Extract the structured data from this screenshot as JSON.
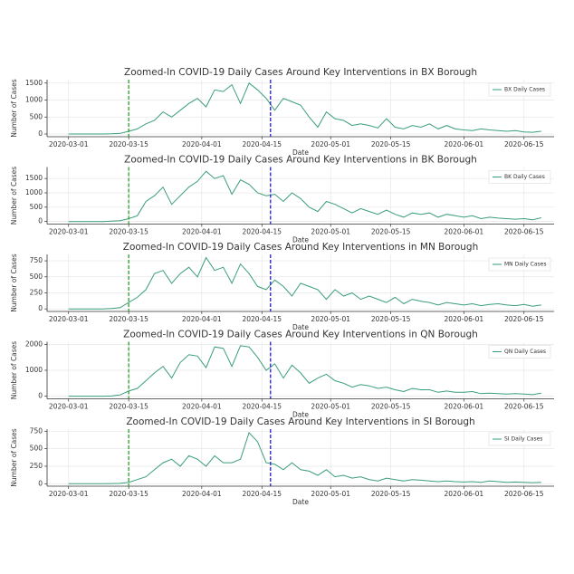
{
  "chart_data": [
    {
      "type": "line",
      "title": "Zoomed-In COVID-19 Daily Cases Around Key Interventions in BX Borough",
      "x_label": "Date",
      "y_label": "Number of Cases",
      "x": [
        "2020-03-01",
        "2020-03-03",
        "2020-03-05",
        "2020-03-07",
        "2020-03-09",
        "2020-03-11",
        "2020-03-13",
        "2020-03-15",
        "2020-03-17",
        "2020-03-19",
        "2020-03-21",
        "2020-03-23",
        "2020-03-25",
        "2020-03-27",
        "2020-03-29",
        "2020-03-31",
        "2020-04-02",
        "2020-04-04",
        "2020-04-06",
        "2020-04-08",
        "2020-04-10",
        "2020-04-12",
        "2020-04-14",
        "2020-04-16",
        "2020-04-18",
        "2020-04-20",
        "2020-04-22",
        "2020-04-24",
        "2020-04-26",
        "2020-04-28",
        "2020-04-30",
        "2020-05-02",
        "2020-05-04",
        "2020-05-06",
        "2020-05-08",
        "2020-05-10",
        "2020-05-12",
        "2020-05-14",
        "2020-05-16",
        "2020-05-18",
        "2020-05-20",
        "2020-05-22",
        "2020-05-24",
        "2020-05-26",
        "2020-05-28",
        "2020-05-30",
        "2020-06-01",
        "2020-06-03",
        "2020-06-05",
        "2020-06-07",
        "2020-06-09",
        "2020-06-11",
        "2020-06-13",
        "2020-06-15",
        "2020-06-17",
        "2020-06-19"
      ],
      "series": [
        {
          "name": "BX Daily Cases",
          "color": "#3a9e7a",
          "values": [
            0,
            0,
            0,
            0,
            0,
            5,
            20,
            80,
            150,
            300,
            400,
            650,
            500,
            700,
            900,
            1050,
            800,
            1300,
            1250,
            1450,
            900,
            1500,
            1300,
            1050,
            700,
            1050,
            950,
            850,
            500,
            200,
            650,
            450,
            400,
            250,
            300,
            250,
            180,
            450,
            200,
            150,
            250,
            200,
            300,
            150,
            250,
            150,
            120,
            100,
            150,
            120,
            100,
            80,
            100,
            60,
            50,
            80
          ]
        }
      ],
      "xlim": [
        "2020-02-25",
        "2020-06-22"
      ],
      "xticks": [
        "2020-03-01",
        "2020-03-15",
        "2020-04-01",
        "2020-04-15",
        "2020-05-01",
        "2020-05-15",
        "2020-06-01",
        "2020-06-15"
      ],
      "ylim": [
        -80,
        1600
      ],
      "yticks": [
        0,
        500,
        1000,
        1500
      ],
      "grid": true,
      "legend": "upper right",
      "vlines": [
        {
          "x": "2020-03-15",
          "color": "#2ca02c"
        },
        {
          "x": "2020-04-17",
          "color": "#1f1fbf"
        }
      ]
    },
    {
      "type": "line",
      "title": "Zoomed-In COVID-19 Daily Cases Around Key Interventions in BK Borough",
      "x_label": "Date",
      "y_label": "Number of Cases",
      "x": [
        "2020-03-01",
        "2020-03-03",
        "2020-03-05",
        "2020-03-07",
        "2020-03-09",
        "2020-03-11",
        "2020-03-13",
        "2020-03-15",
        "2020-03-17",
        "2020-03-19",
        "2020-03-21",
        "2020-03-23",
        "2020-03-25",
        "2020-03-27",
        "2020-03-29",
        "2020-03-31",
        "2020-04-02",
        "2020-04-04",
        "2020-04-06",
        "2020-04-08",
        "2020-04-10",
        "2020-04-12",
        "2020-04-14",
        "2020-04-16",
        "2020-04-18",
        "2020-04-20",
        "2020-04-22",
        "2020-04-24",
        "2020-04-26",
        "2020-04-28",
        "2020-04-30",
        "2020-05-02",
        "2020-05-04",
        "2020-05-06",
        "2020-05-08",
        "2020-05-10",
        "2020-05-12",
        "2020-05-14",
        "2020-05-16",
        "2020-05-18",
        "2020-05-20",
        "2020-05-22",
        "2020-05-24",
        "2020-05-26",
        "2020-05-28",
        "2020-05-30",
        "2020-06-01",
        "2020-06-03",
        "2020-06-05",
        "2020-06-07",
        "2020-06-09",
        "2020-06-11",
        "2020-06-13",
        "2020-06-15",
        "2020-06-17",
        "2020-06-19"
      ],
      "series": [
        {
          "name": "BK Daily Cases",
          "color": "#3a9e7a",
          "values": [
            0,
            0,
            0,
            0,
            0,
            10,
            30,
            100,
            200,
            700,
            900,
            1200,
            600,
            900,
            1200,
            1400,
            1750,
            1500,
            1600,
            950,
            1450,
            1300,
            1000,
            900,
            950,
            700,
            1000,
            800,
            500,
            350,
            700,
            600,
            450,
            300,
            450,
            350,
            250,
            400,
            250,
            150,
            300,
            250,
            300,
            150,
            250,
            200,
            150,
            200,
            100,
            150,
            120,
            100,
            80,
            100,
            60,
            130
          ]
        }
      ],
      "xlim": [
        "2020-02-25",
        "2020-06-22"
      ],
      "xticks": [
        "2020-03-01",
        "2020-03-15",
        "2020-04-01",
        "2020-04-15",
        "2020-05-01",
        "2020-05-15",
        "2020-06-01",
        "2020-06-15"
      ],
      "ylim": [
        -90,
        1900
      ],
      "yticks": [
        0,
        500,
        1000,
        1500
      ],
      "grid": true,
      "legend": "upper right",
      "vlines": [
        {
          "x": "2020-03-15",
          "color": "#2ca02c"
        },
        {
          "x": "2020-04-17",
          "color": "#1f1fbf"
        }
      ]
    },
    {
      "type": "line",
      "title": "Zoomed-In COVID-19 Daily Cases Around Key Interventions in MN Borough",
      "x_label": "Date",
      "y_label": "Number of Cases",
      "x": [
        "2020-03-01",
        "2020-03-03",
        "2020-03-05",
        "2020-03-07",
        "2020-03-09",
        "2020-03-11",
        "2020-03-13",
        "2020-03-15",
        "2020-03-17",
        "2020-03-19",
        "2020-03-21",
        "2020-03-23",
        "2020-03-25",
        "2020-03-27",
        "2020-03-29",
        "2020-03-31",
        "2020-04-02",
        "2020-04-04",
        "2020-04-06",
        "2020-04-08",
        "2020-04-10",
        "2020-04-12",
        "2020-04-14",
        "2020-04-16",
        "2020-04-18",
        "2020-04-20",
        "2020-04-22",
        "2020-04-24",
        "2020-04-26",
        "2020-04-28",
        "2020-04-30",
        "2020-05-02",
        "2020-05-04",
        "2020-05-06",
        "2020-05-08",
        "2020-05-10",
        "2020-05-12",
        "2020-05-14",
        "2020-05-16",
        "2020-05-18",
        "2020-05-20",
        "2020-05-22",
        "2020-05-24",
        "2020-05-26",
        "2020-05-28",
        "2020-05-30",
        "2020-06-01",
        "2020-06-03",
        "2020-06-05",
        "2020-06-07",
        "2020-06-09",
        "2020-06-11",
        "2020-06-13",
        "2020-06-15",
        "2020-06-17",
        "2020-06-19"
      ],
      "series": [
        {
          "name": "MN Daily Cases",
          "color": "#3a9e7a",
          "values": [
            0,
            0,
            0,
            0,
            0,
            5,
            20,
            100,
            180,
            300,
            550,
            600,
            400,
            550,
            650,
            500,
            800,
            600,
            650,
            400,
            700,
            550,
            350,
            300,
            450,
            350,
            200,
            400,
            350,
            300,
            150,
            300,
            200,
            250,
            150,
            200,
            150,
            100,
            180,
            80,
            150,
            120,
            100,
            60,
            100,
            80,
            60,
            80,
            50,
            70,
            80,
            60,
            50,
            70,
            40,
            60
          ]
        }
      ],
      "xlim": [
        "2020-02-25",
        "2020-06-22"
      ],
      "xticks": [
        "2020-03-01",
        "2020-03-15",
        "2020-04-01",
        "2020-04-15",
        "2020-05-01",
        "2020-05-15",
        "2020-06-01",
        "2020-06-15"
      ],
      "ylim": [
        -40,
        850
      ],
      "yticks": [
        0,
        250,
        500,
        750
      ],
      "grid": true,
      "legend": "upper right",
      "vlines": [
        {
          "x": "2020-03-15",
          "color": "#2ca02c"
        },
        {
          "x": "2020-04-17",
          "color": "#1f1fbf"
        }
      ]
    },
    {
      "type": "line",
      "title": "Zoomed-In COVID-19 Daily Cases Around Key Interventions in QN Borough",
      "x_label": "Date",
      "y_label": "Number of Cases",
      "x": [
        "2020-03-01",
        "2020-03-03",
        "2020-03-05",
        "2020-03-07",
        "2020-03-09",
        "2020-03-11",
        "2020-03-13",
        "2020-03-15",
        "2020-03-17",
        "2020-03-19",
        "2020-03-21",
        "2020-03-23",
        "2020-03-25",
        "2020-03-27",
        "2020-03-29",
        "2020-03-31",
        "2020-04-02",
        "2020-04-04",
        "2020-04-06",
        "2020-04-08",
        "2020-04-10",
        "2020-04-12",
        "2020-04-14",
        "2020-04-16",
        "2020-04-18",
        "2020-04-20",
        "2020-04-22",
        "2020-04-24",
        "2020-04-26",
        "2020-04-28",
        "2020-04-30",
        "2020-05-02",
        "2020-05-04",
        "2020-05-06",
        "2020-05-08",
        "2020-05-10",
        "2020-05-12",
        "2020-05-14",
        "2020-05-16",
        "2020-05-18",
        "2020-05-20",
        "2020-05-22",
        "2020-05-24",
        "2020-05-26",
        "2020-05-28",
        "2020-05-30",
        "2020-06-01",
        "2020-06-03",
        "2020-06-05",
        "2020-06-07",
        "2020-06-09",
        "2020-06-11",
        "2020-06-13",
        "2020-06-15",
        "2020-06-17",
        "2020-06-19"
      ],
      "series": [
        {
          "name": "QN Daily Cases",
          "color": "#3a9e7a",
          "values": [
            0,
            0,
            0,
            0,
            0,
            10,
            50,
            200,
            300,
            600,
            900,
            1150,
            700,
            1300,
            1600,
            1550,
            1100,
            1900,
            1850,
            1150,
            1950,
            1900,
            1500,
            1000,
            1250,
            700,
            1200,
            900,
            500,
            700,
            850,
            600,
            500,
            350,
            450,
            400,
            300,
            350,
            250,
            180,
            300,
            250,
            250,
            150,
            200,
            150,
            150,
            180,
            100,
            120,
            100,
            80,
            100,
            80,
            60,
            120
          ]
        }
      ],
      "xlim": [
        "2020-02-25",
        "2020-06-22"
      ],
      "xticks": [
        "2020-03-01",
        "2020-03-15",
        "2020-04-01",
        "2020-04-15",
        "2020-05-01",
        "2020-05-15",
        "2020-06-01",
        "2020-06-15"
      ],
      "ylim": [
        -100,
        2100
      ],
      "yticks": [
        0,
        1000,
        2000
      ],
      "grid": true,
      "legend": "upper right",
      "vlines": [
        {
          "x": "2020-03-15",
          "color": "#2ca02c"
        },
        {
          "x": "2020-04-17",
          "color": "#1f1fbf"
        }
      ]
    },
    {
      "type": "line",
      "title": "Zoomed-In COVID-19 Daily Cases Around Key Interventions in SI Borough",
      "x_label": "Date",
      "y_label": "Number of Cases",
      "x": [
        "2020-03-01",
        "2020-03-03",
        "2020-03-05",
        "2020-03-07",
        "2020-03-09",
        "2020-03-11",
        "2020-03-13",
        "2020-03-15",
        "2020-03-17",
        "2020-03-19",
        "2020-03-21",
        "2020-03-23",
        "2020-03-25",
        "2020-03-27",
        "2020-03-29",
        "2020-03-31",
        "2020-04-02",
        "2020-04-04",
        "2020-04-06",
        "2020-04-08",
        "2020-04-10",
        "2020-04-12",
        "2020-04-14",
        "2020-04-16",
        "2020-04-18",
        "2020-04-20",
        "2020-04-22",
        "2020-04-24",
        "2020-04-26",
        "2020-04-28",
        "2020-04-30",
        "2020-05-02",
        "2020-05-04",
        "2020-05-06",
        "2020-05-08",
        "2020-05-10",
        "2020-05-12",
        "2020-05-14",
        "2020-05-16",
        "2020-05-18",
        "2020-05-20",
        "2020-05-22",
        "2020-05-24",
        "2020-05-26",
        "2020-05-28",
        "2020-05-30",
        "2020-06-01",
        "2020-06-03",
        "2020-06-05",
        "2020-06-07",
        "2020-06-09",
        "2020-06-11",
        "2020-06-13",
        "2020-06-15",
        "2020-06-17",
        "2020-06-19"
      ],
      "series": [
        {
          "name": "SI Daily Cases",
          "color": "#3a9e7a",
          "values": [
            0,
            0,
            0,
            0,
            0,
            2,
            5,
            20,
            60,
            100,
            200,
            300,
            350,
            250,
            400,
            350,
            250,
            400,
            300,
            300,
            350,
            730,
            600,
            300,
            280,
            200,
            300,
            200,
            180,
            120,
            200,
            100,
            120,
            80,
            100,
            60,
            40,
            80,
            60,
            40,
            60,
            50,
            40,
            30,
            40,
            30,
            25,
            30,
            20,
            40,
            30,
            20,
            25,
            20,
            15,
            20
          ]
        }
      ],
      "xlim": [
        "2020-02-25",
        "2020-06-22"
      ],
      "xticks": [
        "2020-03-01",
        "2020-03-15",
        "2020-04-01",
        "2020-04-15",
        "2020-05-01",
        "2020-05-15",
        "2020-06-01",
        "2020-06-15"
      ],
      "ylim": [
        -35,
        780
      ],
      "yticks": [
        0,
        250,
        500,
        750
      ],
      "grid": true,
      "legend": "upper right",
      "vlines": [
        {
          "x": "2020-03-15",
          "color": "#2ca02c"
        },
        {
          "x": "2020-04-17",
          "color": "#1f1fbf"
        }
      ]
    }
  ]
}
